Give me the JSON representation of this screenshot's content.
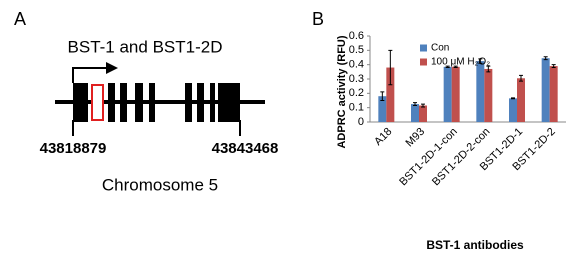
{
  "panel_a": {
    "label": "A",
    "title": "BST-1 and BST1-2D",
    "start": "43818879",
    "end": "43843468",
    "chromosome": "Chromosome  5"
  },
  "chart_data": {
    "type": "bar",
    "label": "B",
    "y_label": "ADPRC activity (RFU)",
    "x_label": "BST-1 antibodies",
    "categories": [
      "A18",
      "M93",
      "BST1-2D-1-con",
      "BST1-2D-2-con",
      "BST1-2D-1",
      "BST1-2D-2"
    ],
    "series": [
      {
        "name": "Con",
        "color": "#4f81bd",
        "values": [
          0.18,
          0.125,
          0.385,
          0.425,
          0.165,
          0.445
        ],
        "errors": [
          0.03,
          0.01,
          0.005,
          0.015,
          0.003,
          0.01
        ]
      },
      {
        "name": "100 μM H₂O₂",
        "color": "#c0504d",
        "values": [
          0.38,
          0.115,
          0.385,
          0.37,
          0.305,
          0.39
        ],
        "errors": [
          0.12,
          0.01,
          0.005,
          0.02,
          0.02,
          0.01
        ]
      }
    ],
    "ylim": [
      0,
      0.6
    ],
    "yticks": [
      0,
      0.1,
      0.2,
      0.3,
      0.4,
      0.5,
      0.6
    ]
  }
}
